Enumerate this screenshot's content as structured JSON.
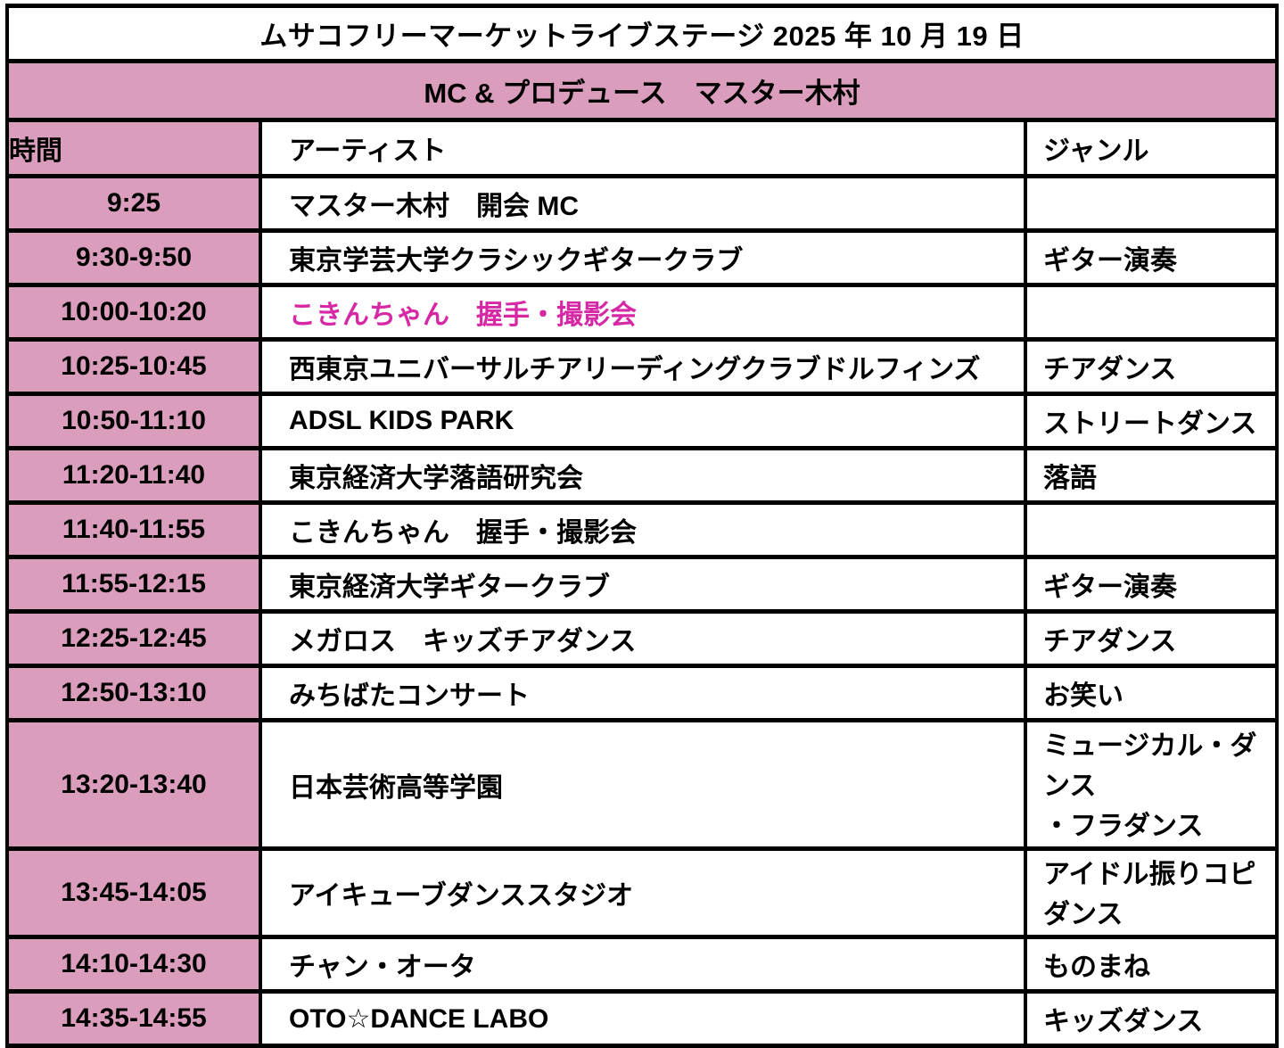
{
  "title": "ムサコフリーマーケットライブステージ 2025 年 10 月 19 日",
  "subtitle": "MC & プロデュース　マスター木村",
  "columns": {
    "time": "時間",
    "artist": "アーティスト",
    "genre": "ジャンル"
  },
  "rows": [
    {
      "time": "9:25",
      "artist": "マスター木村　開会 MC",
      "genre": ""
    },
    {
      "time": "9:30-9:50",
      "artist": "東京学芸大学クラシックギタークラブ",
      "genre": "ギター演奏"
    },
    {
      "time": "10:00-10:20",
      "artist": "こきんちゃん　握手・撮影会",
      "genre": ""
    },
    {
      "time": "10:25-10:45",
      "artist": "西東京ユニバーサルチアリーディングクラブドルフィンズ",
      "genre": "チアダンス"
    },
    {
      "time": "10:50-11:10",
      "artist": "ADSL KIDS PARK",
      "genre": "ストリートダンス"
    },
    {
      "time": "11:20-11:40",
      "artist": "東京経済大学落語研究会",
      "genre": "落語"
    },
    {
      "time": "11:40-11:55",
      "artist": "こきんちゃん　握手・撮影会",
      "genre": ""
    },
    {
      "time": "11:55-12:15",
      "artist": "東京経済大学ギタークラブ",
      "genre": "ギター演奏"
    },
    {
      "time": "12:25-12:45",
      "artist": "メガロス　キッズチアダンス",
      "genre": "チアダンス"
    },
    {
      "time": "12:50-13:10",
      "artist": "みちばたコンサート",
      "genre": "お笑い"
    },
    {
      "time": "13:20-13:40",
      "artist": "日本芸術高等学園",
      "genre": "ミュージカル・ダンス\n・フラダンス"
    },
    {
      "time": "13:45-14:05",
      "artist": "アイキューブダンススタジオ",
      "genre": "アイドル振りコピダンス"
    },
    {
      "time": "14:10-14:30",
      "artist": "チャン・オータ",
      "genre": "ものまね"
    },
    {
      "time": "14:35-14:55",
      "artist": "OTO☆DANCE LABO",
      "genre": "キッズダンス"
    }
  ],
  "colors": {
    "row_pink": "#da9dbc",
    "highlight_magenta": "#d628a5",
    "border_black": "#000000",
    "cell_white": "#ffffff"
  }
}
